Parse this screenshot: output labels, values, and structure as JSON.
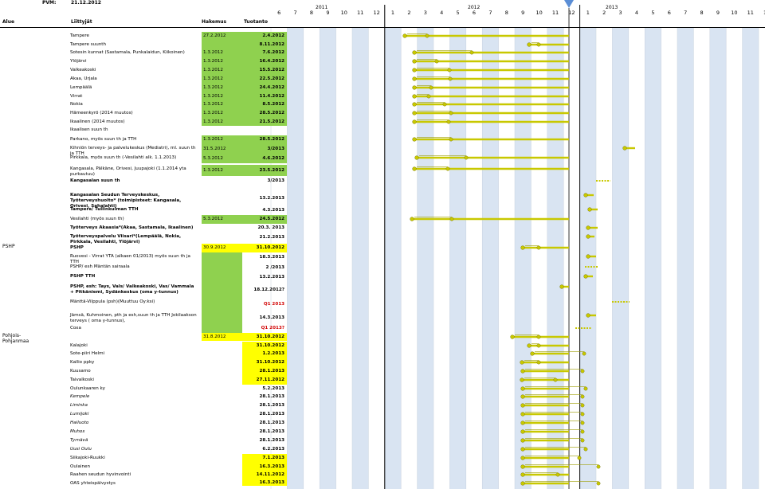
{
  "header": {
    "pvm_label": "PVM:",
    "pvm_value": "21.12.2012",
    "col_alue": "Alue",
    "col_liittyjat": "Liittyjät",
    "col_hakemus": "Hakemus",
    "col_tuotanto": "Tuotanto"
  },
  "timeline": {
    "years": [
      "2011",
      "2012",
      "2013"
    ],
    "months": [
      "6",
      "7",
      "8",
      "9",
      "10",
      "11",
      "12",
      "1",
      "2",
      "3",
      "4",
      "5",
      "6",
      "7",
      "8",
      "9",
      "10",
      "11",
      "12",
      "1",
      "2",
      "3",
      "4",
      "5",
      "6",
      "7",
      "8",
      "9",
      "10",
      "11",
      "12"
    ]
  },
  "regions": {
    "pshp": "PSHP",
    "pohjois": "Pohjois-Pohjanmaa"
  },
  "rows": [
    {
      "name": "Tampere",
      "start": "27.2.2012",
      "end": "2.4.2012"
    },
    {
      "name": "Tampere suunth",
      "start": "",
      "end": "8.11.2012"
    },
    {
      "name": "Sotesin kunnat (Sastamala, Punkalaidun, Kiikoinen)",
      "start": "1.3.2012",
      "end": "7.6.2012"
    },
    {
      "name": "Ylöjärvi",
      "start": "1.3.2012",
      "end": "16.4.2012"
    },
    {
      "name": "Valkeakoski",
      "start": "1.3.2012",
      "end": "15.5.2012"
    },
    {
      "name": "Akaa, Urjala",
      "start": "1.3.2012",
      "end": "22.5.2012"
    },
    {
      "name": "Lempäälä",
      "start": "1.3.2012",
      "end": "24.4.2012"
    },
    {
      "name": "Virrat",
      "start": "1.3.2012",
      "end": "11.4.2012"
    },
    {
      "name": "Nokia",
      "start": "1.3.2012",
      "end": "8.5.2012"
    },
    {
      "name": "Hämeenkyrö (2014 muutos)",
      "start": "1.3.2012",
      "end": "28.5.2012"
    },
    {
      "name": "Ikaalinen (2014 muutos)",
      "start": "1.3.2012",
      "end": "21.5.2012"
    },
    {
      "name": "Ikaalisen suun th",
      "start": "",
      "end": ""
    },
    {
      "name": "Parkano, myös suun th ja TTH",
      "start": "1.3.2012",
      "end": "28.5.2012"
    },
    {
      "name": "Kihniön terveys- ja palvelukeskus (Mediatri), ml. suun th ja TTH",
      "start": "31.5.2012",
      "end": "3/2013"
    },
    {
      "name": "Pirkkala, myös suun th (-Vesilahti alk. 1.1.2013)",
      "start": "5.3.2012",
      "end": "4.6.2012"
    },
    {
      "name": "Kangasala, Pälkäne, Orivesi, Juupajoki (1.1.2014 yta purkautuu)",
      "start": "1.3.2012",
      "end": "23.5.2012"
    },
    {
      "name": "Kangasalan suun th",
      "start": "",
      "end": "3/2013"
    },
    {
      "name": "Kangasalan Seudun Terveyskeskus, Työterveyshuolto* (toimipisteet: Kangasala, Orivesi, Sahalahti)",
      "start": "",
      "end": "13.2.2013"
    },
    {
      "name": "Tampere/ Tullinkulman TTH",
      "start": "",
      "end": "4.3.2013"
    },
    {
      "name": "Vesilahti (myös suun th)",
      "start": "5.3.2012",
      "end": "24.5.2012"
    },
    {
      "name": "Työterveys Akaasia*(Akaa, Sastamala, Ikaalinen)",
      "start": "",
      "end": "20.3. 2013"
    },
    {
      "name": "Työterveyspalvelu Viisari*(Lempäälä, Nokia, Pirkkala, Vesilahti, Ylöjärvi)",
      "start": "",
      "end": "21.2.2013"
    },
    {
      "name": "PSHP",
      "start": "30.9.2012",
      "end": "31.10.2012"
    },
    {
      "name": "Ruovesi - Virrat YTA (alkaen 01/2013) myös suun th ja TTH",
      "start": "",
      "end": "18.3.2013"
    },
    {
      "name": "PSHP/ esh Mäntän sairaala",
      "start": "",
      "end": "2 /2013"
    },
    {
      "name": "PSHP TTH",
      "start": "",
      "end": "13.2.2013"
    },
    {
      "name": "PSHP, esh: Tays, Vals/ Valkeakoski, Vas/ Vammala + Pitkäniemi, Sydänkeskus (oma y-tunnus)",
      "start": "",
      "end": "18.12.2012?"
    },
    {
      "name": "Mänttä-Vilppula (psh)(Muuttuu Oy:ksi)",
      "start": "",
      "end": "Q1 2013"
    },
    {
      "name": "Jämsä, Kuhmoinen, pth ja esh,suun th ja TTH Jokilaakson terveys ( oma y-tunnus),",
      "start": "",
      "end": "14.3.2013"
    },
    {
      "name": "Coxa",
      "start": "",
      "end": "Q1 2013?"
    },
    {
      "name": "Pohjois-Pohjanmaa",
      "start": "31.8.2012",
      "end": "31.10.2012"
    },
    {
      "name": "Kalajoki",
      "start": "",
      "end": "31.10.2012"
    },
    {
      "name": "Sote-piiri Helmi",
      "start": "",
      "end": "1.2.2013"
    },
    {
      "name": "Kallio ppky",
      "start": "",
      "end": "31.10.2012"
    },
    {
      "name": "Kuusamo",
      "start": "",
      "end": "28.1.2013"
    },
    {
      "name": "Taivalkoski",
      "start": "",
      "end": "27.11.2012"
    },
    {
      "name": "Oulunkaaren ky",
      "start": "",
      "end": "5.2.2013"
    },
    {
      "name": "Kempele",
      "start": "",
      "end": "28.1.2013"
    },
    {
      "name": "Liminka",
      "start": "",
      "end": "28.1.2013"
    },
    {
      "name": "Lumijoki",
      "start": "",
      "end": "28.1.2013"
    },
    {
      "name": "Hailuoto",
      "start": "",
      "end": "28.1.2013"
    },
    {
      "name": "Muhos",
      "start": "",
      "end": "28.1.2013"
    },
    {
      "name": "Tyrnävä",
      "start": "",
      "end": "28.1.2013"
    },
    {
      "name": "Uusi Oulu",
      "start": "",
      "end": "6.2.2013"
    },
    {
      "name": "Siikajoki-Ruukki",
      "start": "",
      "end": "7.1.2013"
    },
    {
      "name": "Oulainen",
      "start": "",
      "end": "16.3.2013"
    },
    {
      "name": "Raahen seudun hyvinvointi",
      "start": "",
      "end": "14.11.2012"
    },
    {
      "name": "OAS yhteispäivystys",
      "start": "",
      "end": "16.3.2013"
    }
  ],
  "colors": {
    "green_cell": "#8fd14f",
    "yellow_cell": "#ffff00",
    "bar": "#c8c800",
    "column_shade": "#d9e4f2",
    "marker": "#5b8ed6"
  }
}
